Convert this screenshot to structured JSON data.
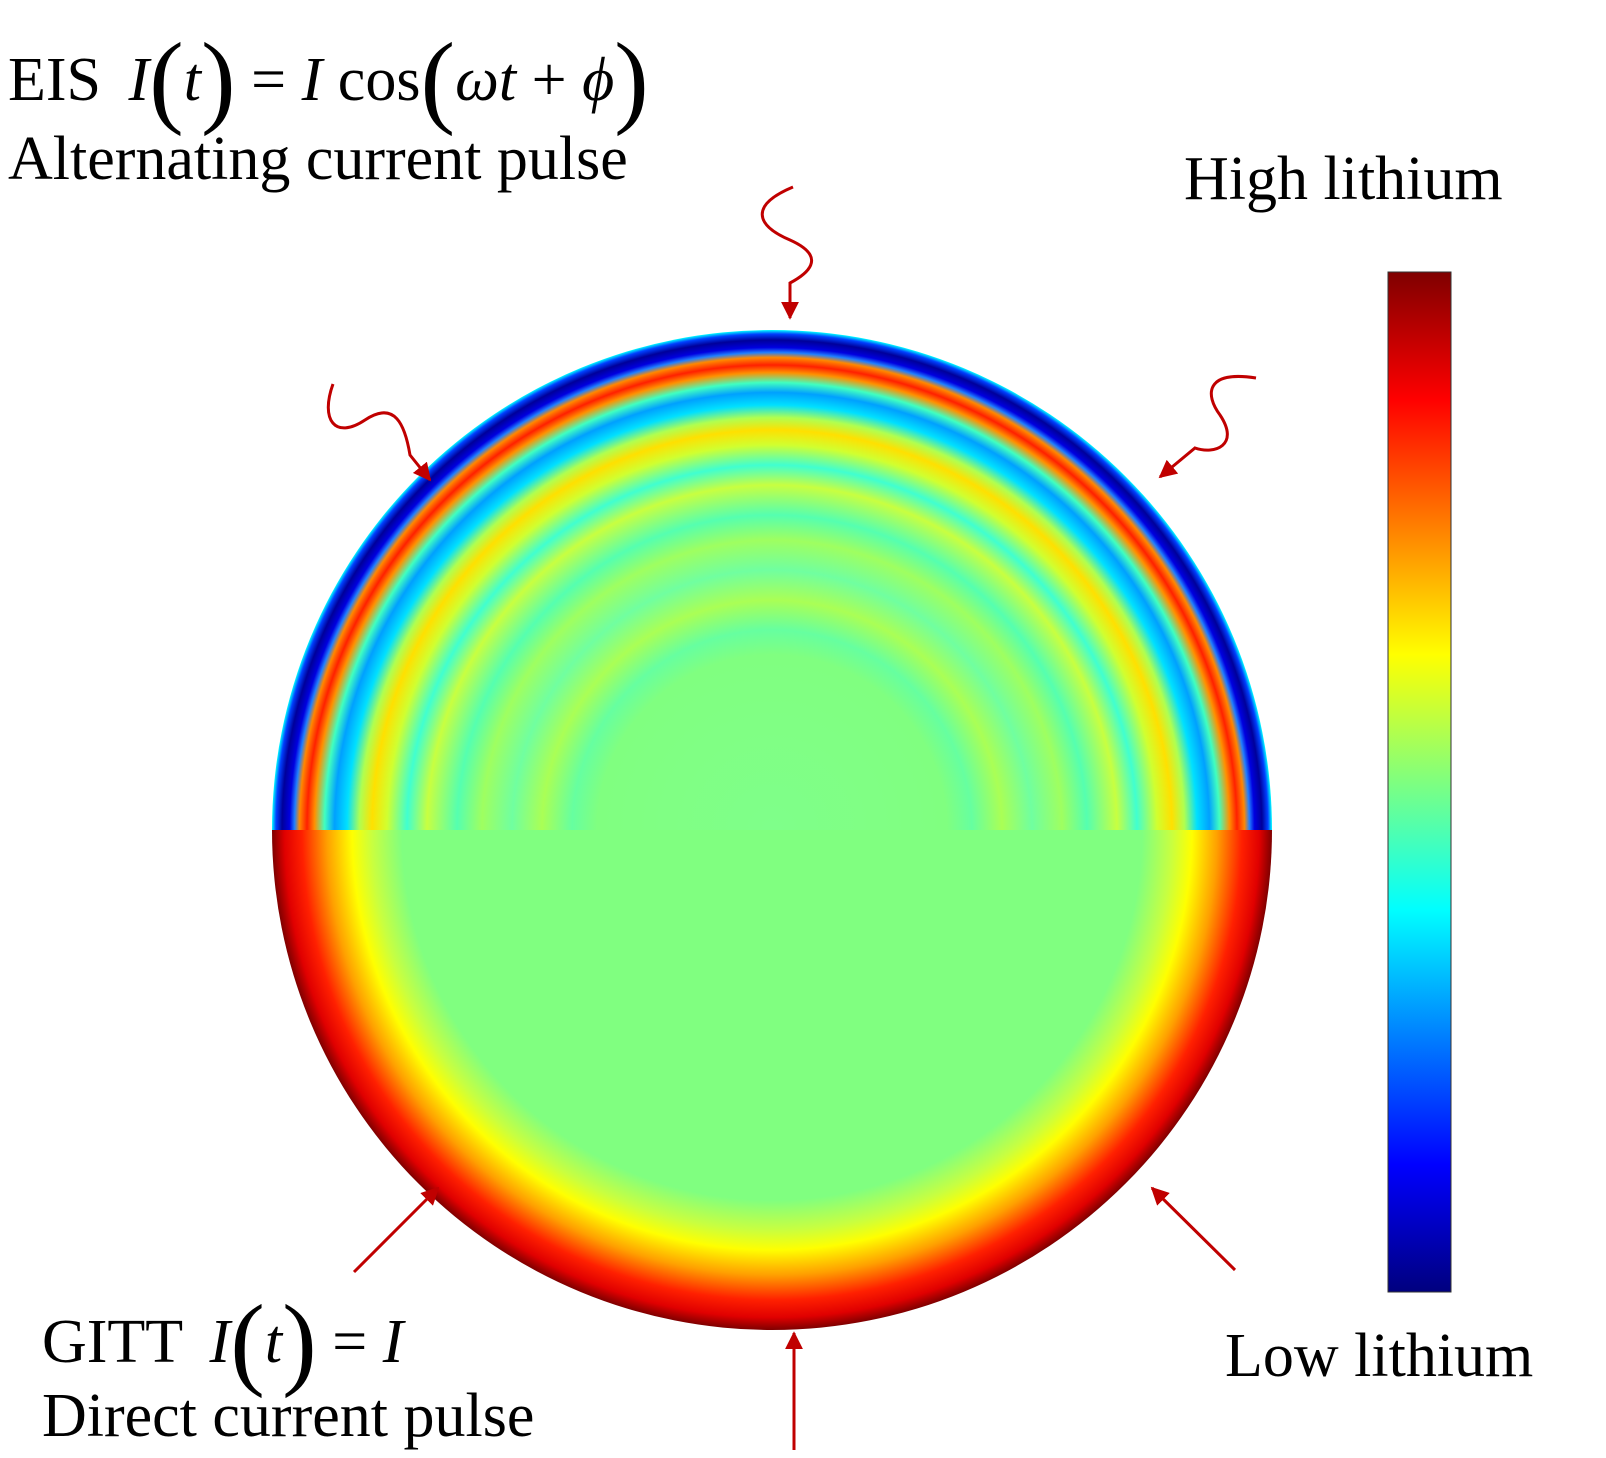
{
  "eis": {
    "method": "EIS",
    "eq_lhs": "I",
    "eq_var": "t",
    "eq_eq": "=",
    "eq_amp": "I",
    "eq_cos": "cos",
    "eq_omega_t": "ωt",
    "eq_plus": "+",
    "eq_phi": "ϕ",
    "caption": "Alternating current pulse"
  },
  "gitt": {
    "method": "GITT",
    "eq_lhs": "I",
    "eq_var": "t",
    "eq_eq": "=",
    "eq_rhs": "I",
    "caption": "Direct current pulse"
  },
  "colorbar": {
    "high_label": "High lithium",
    "low_label": "Low lithium",
    "colormap": "jet",
    "stops": [
      "#00007f",
      "#0000ff",
      "#007fff",
      "#00ffff",
      "#7fff7f",
      "#ffff00",
      "#ff7f00",
      "#ff0000",
      "#7f0000"
    ]
  },
  "colors": {
    "arrow": "#c00000",
    "eis_bands": [
      "#00ffff",
      "#00008c",
      "#ff2a00",
      "#00c8ff",
      "#ffe600",
      "#7fff9f",
      "#00ffdc",
      "#aaff55",
      "#55ffaa",
      "#7fff7f"
    ],
    "gitt_core": "#80ff80",
    "gitt_ring": [
      "#80ff80",
      "#ffff00",
      "#ff8c00",
      "#ff0000",
      "#7f0000"
    ]
  }
}
